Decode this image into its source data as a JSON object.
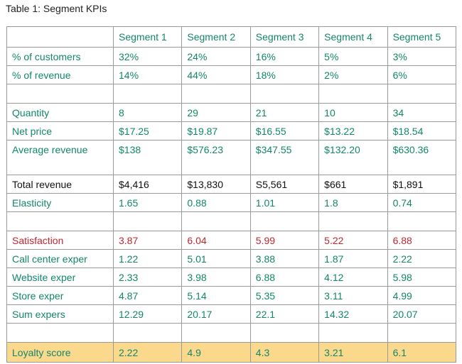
{
  "header": {
    "title": "Table 1: Segment KPIs"
  },
  "table": {
    "header_color": "#12876a",
    "columns": [
      "Segment 1",
      "Segment 2",
      "Segment 3",
      "Segment 4",
      "Segment 5"
    ],
    "groups": [
      {
        "rows": [
          {
            "label": "% of customers",
            "color": "#12876a",
            "cells": [
              "32%",
              "24%",
              "16%",
              "5%",
              "3%"
            ]
          },
          {
            "label": "% of revenue",
            "color": "#12876a",
            "cells": [
              "14%",
              "44%",
              "18%",
              "2%",
              "6%"
            ]
          }
        ]
      },
      {
        "rows": [
          {
            "label": "Quantity",
            "color": "#12876a",
            "cells": [
              "8",
              "29",
              "21",
              "10",
              "34"
            ]
          },
          {
            "label": "Net price",
            "color": "#12876a",
            "cells": [
              "$17.25",
              "$19.87",
              "$16.55",
              "$13.22",
              "$18.54"
            ]
          },
          {
            "label": "Average revenue",
            "color": "#12876a",
            "cells": [
              "$138",
              "$576.23",
              "$347.55",
              "$132.20",
              "$630.36"
            ]
          },
          {
            "label": "Total revenue",
            "color": "#111111",
            "cells": [
              "$4,416",
              "$13,830",
              "S5,561",
              "$661",
              "$1,891"
            ]
          },
          {
            "label": "Elasticity",
            "color": "#12876a",
            "cells": [
              "1.65",
              "0.88",
              "1.01",
              "1.8",
              "0.74"
            ]
          }
        ]
      },
      {
        "rows": [
          {
            "label": "Satisfaction",
            "color": "#c0272d",
            "cells": [
              "3.87",
              "6.04",
              "5.99",
              "5.22",
              "6.88"
            ]
          },
          {
            "label": "Call center exper",
            "color": "#12876a",
            "cells": [
              "1.22",
              "5.01",
              "3.88",
              "1.87",
              "2.22"
            ]
          },
          {
            "label": "Website exper",
            "color": "#12876a",
            "cells": [
              "2.33",
              "3.98",
              "6.88",
              "4.12",
              "5.98"
            ]
          },
          {
            "label": "Store exper",
            "color": "#12876a",
            "cells": [
              "4.87",
              "5.14",
              "5.35",
              "3.11",
              "4.99"
            ]
          },
          {
            "label": "Sum expers",
            "color": "#12876a",
            "cells": [
              "12.29",
              "20.17",
              "22.1",
              "14.32",
              "20.07"
            ]
          }
        ]
      },
      {
        "rows": [
          {
            "label": "Loyalty score",
            "color": "#12876a",
            "highlight": "#fbd98c",
            "cells": [
              "2.22",
              "4.9",
              "4.3",
              "3.21",
              "6.1"
            ]
          }
        ]
      }
    ]
  }
}
